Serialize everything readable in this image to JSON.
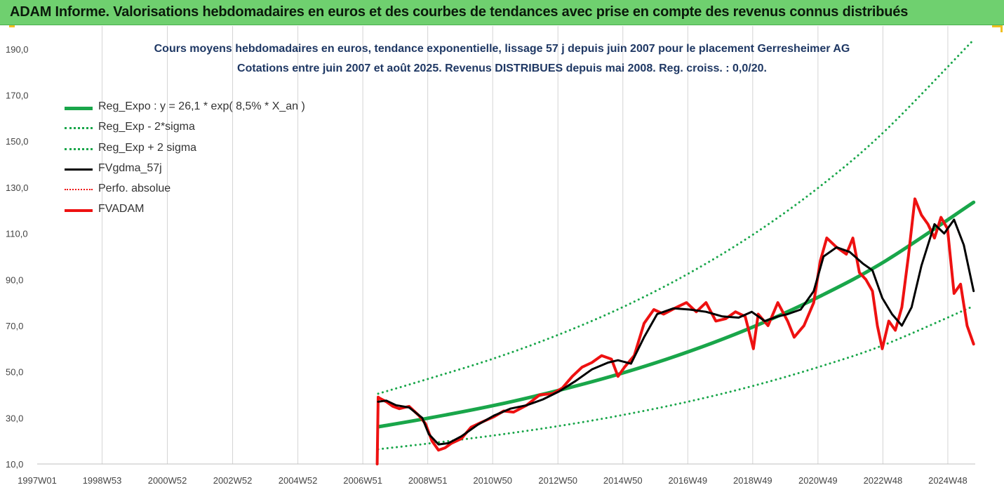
{
  "banner": {
    "title": "ADAM Informe. Valorisations hebdomadaires en euros et des courbes de tendances avec prise en compte des revenus connus distribués"
  },
  "colors": {
    "banner_bg": "#6fd06f",
    "title_text": "#1f3864",
    "reg_expo": "#19a64a",
    "sigma_bands": "#19a64a",
    "fvgdma": "#000000",
    "fvadam": "#ee1111",
    "perfo": "#ee1111",
    "gridline": "#d4d4d4"
  },
  "chart_data": {
    "type": "line",
    "title": "Cours moyens hebdomadaires en euros, tendance exponentielle, lissage 57 j depuis juin 2007 pour le placement Gerresheimer AG",
    "subtitle": "Cotations entre juin 2007 et août 2025. Revenus DISTRIBUES depuis mai 2008. Reg. croiss. : 0,0/20.",
    "xlabel": "",
    "ylabel": "",
    "ylim": [
      10,
      200
    ],
    "y_ticks": [
      "10,0",
      "30,0",
      "50,0",
      "70,0",
      "90,0",
      "110,0",
      "130,0",
      "150,0",
      "170,0",
      "190,0"
    ],
    "x_range": [
      1997.0,
      2025.75
    ],
    "x_ticks": [
      {
        "label": "1997W01",
        "x": 1997.0
      },
      {
        "label": "1998W53",
        "x": 1998.99
      },
      {
        "label": "2000W52",
        "x": 2000.99
      },
      {
        "label": "2002W52",
        "x": 2002.99
      },
      {
        "label": "2004W52",
        "x": 2004.99
      },
      {
        "label": "2006W51",
        "x": 2006.98
      },
      {
        "label": "2008W51",
        "x": 2008.97
      },
      {
        "label": "2010W50",
        "x": 2010.96
      },
      {
        "label": "2012W50",
        "x": 2012.96
      },
      {
        "label": "2014W50",
        "x": 2014.95
      },
      {
        "label": "2016W49",
        "x": 2016.94
      },
      {
        "label": "2018W49",
        "x": 2018.93
      },
      {
        "label": "2020W49",
        "x": 2020.93
      },
      {
        "label": "2022W48",
        "x": 2022.92
      },
      {
        "label": "2024W48",
        "x": 2024.91
      }
    ],
    "grid": "vertical",
    "legend_position": "top-left",
    "legend": [
      {
        "name": "Reg_Expo : y = 26,1 * exp( 8,5% *  X_an )",
        "color": "#19a64a",
        "style": "solid",
        "width": 5
      },
      {
        "name": "Reg_Exp - 2*sigma",
        "color": "#19a64a",
        "style": "dotted",
        "width": 3
      },
      {
        "name": "Reg_Exp + 2 sigma",
        "color": "#19a64a",
        "style": "dotted",
        "width": 3
      },
      {
        "name": "FVgdma_57j",
        "color": "#000000",
        "style": "solid",
        "width": 3
      },
      {
        "name": "Perfo. absolue",
        "color": "#ee1111",
        "style": "dotted",
        "width": 2
      },
      {
        "name": "FVADAM",
        "color": "#ee1111",
        "style": "solid",
        "width": 4
      }
    ],
    "series": [
      {
        "name": "Reg_Expo : y = 26,1 * exp( 8,5% *  X_an )",
        "x": [
          2007.45,
          2009.0,
          2011.0,
          2013.0,
          2015.0,
          2017.0,
          2019.0,
          2021.0,
          2023.0,
          2025.7
        ],
        "values": [
          26.1,
          29.9,
          35.4,
          42.0,
          49.7,
          58.9,
          69.8,
          82.8,
          98.1,
          123.5
        ]
      },
      {
        "name": "Reg_Exp - 2*sigma",
        "x": [
          2007.45,
          2009.0,
          2011.0,
          2013.0,
          2015.0,
          2017.0,
          2019.0,
          2021.0,
          2023.0,
          2025.7
        ],
        "values": [
          16.4,
          18.9,
          22.4,
          26.5,
          31.4,
          37.2,
          44.1,
          52.3,
          61.9,
          78.5
        ]
      },
      {
        "name": "Reg_Exp + 2 sigma",
        "x": [
          2007.45,
          2009.0,
          2011.0,
          2013.0,
          2015.0,
          2017.0,
          2019.0,
          2021.0,
          2023.0,
          2025.7
        ],
        "values": [
          40.5,
          47.0,
          55.8,
          66.2,
          78.4,
          92.9,
          110.1,
          130.5,
          154.7,
          194.0
        ]
      },
      {
        "name": "FVgdma_57j",
        "x": [
          2007.45,
          2007.7,
          2008.0,
          2008.4,
          2008.8,
          2009.0,
          2009.3,
          2009.6,
          2010.0,
          2010.5,
          2011.0,
          2011.5,
          2012.0,
          2012.5,
          2013.0,
          2013.5,
          2014.0,
          2014.5,
          2014.8,
          2015.2,
          2015.6,
          2016.0,
          2016.5,
          2017.0,
          2017.5,
          2018.0,
          2018.5,
          2018.9,
          2019.3,
          2019.7,
          2020.0,
          2020.4,
          2020.8,
          2021.1,
          2021.5,
          2021.9,
          2022.3,
          2022.6,
          2022.9,
          2023.2,
          2023.5,
          2023.8,
          2024.1,
          2024.5,
          2024.8,
          2025.1,
          2025.4,
          2025.7
        ],
        "values": [
          37.0,
          37.5,
          35.5,
          34.5,
          30.0,
          23.0,
          18.5,
          19.0,
          22.0,
          27.0,
          31.0,
          34.0,
          35.5,
          38.0,
          41.5,
          46.0,
          51.0,
          54.0,
          55.0,
          53.5,
          65.0,
          75.0,
          77.5,
          77.0,
          76.0,
          74.0,
          73.5,
          76.0,
          72.0,
          74.0,
          75.0,
          77.0,
          85.0,
          100.0,
          104.0,
          102.0,
          97.0,
          94.0,
          82.0,
          75.0,
          70.0,
          78.0,
          96.0,
          114.0,
          110.0,
          116.0,
          105.0,
          85.0
        ]
      },
      {
        "name": "FVADAM",
        "x": [
          2007.42,
          2007.45,
          2007.5,
          2007.7,
          2007.9,
          2008.1,
          2008.4,
          2008.7,
          2008.9,
          2009.1,
          2009.3,
          2009.5,
          2009.7,
          2010.0,
          2010.3,
          2010.6,
          2011.0,
          2011.3,
          2011.6,
          2012.0,
          2012.4,
          2012.8,
          2013.1,
          2013.4,
          2013.7,
          2014.0,
          2014.3,
          2014.6,
          2014.8,
          2015.0,
          2015.3,
          2015.6,
          2015.9,
          2016.2,
          2016.6,
          2016.9,
          2017.2,
          2017.5,
          2017.8,
          2018.1,
          2018.4,
          2018.7,
          2018.95,
          2019.1,
          2019.4,
          2019.7,
          2020.0,
          2020.2,
          2020.5,
          2020.8,
          2021.0,
          2021.2,
          2021.5,
          2021.8,
          2022.0,
          2022.2,
          2022.4,
          2022.6,
          2022.75,
          2022.9,
          2023.1,
          2023.3,
          2023.5,
          2023.7,
          2023.9,
          2024.1,
          2024.3,
          2024.5,
          2024.7,
          2024.9,
          2025.1,
          2025.3,
          2025.5,
          2025.7
        ],
        "values": [
          10.0,
          39.0,
          38.5,
          37.0,
          35.0,
          34.0,
          35.0,
          31.0,
          27.5,
          20.0,
          16.0,
          17.0,
          19.0,
          21.0,
          26.0,
          28.0,
          30.5,
          33.0,
          32.5,
          35.5,
          40.0,
          40.5,
          43.0,
          48.0,
          52.0,
          54.0,
          57.0,
          55.5,
          48.0,
          52.0,
          57.0,
          71.0,
          77.0,
          75.0,
          78.0,
          80.0,
          76.0,
          80.0,
          72.0,
          73.0,
          76.0,
          74.0,
          60.0,
          75.0,
          70.0,
          80.0,
          72.0,
          65.0,
          70.0,
          80.0,
          98.0,
          108.0,
          104.0,
          101.0,
          108.0,
          93.0,
          90.0,
          85.0,
          70.0,
          60.0,
          72.0,
          68.0,
          78.0,
          100.0,
          125.0,
          118.0,
          114.0,
          108.0,
          117.0,
          112.0,
          84.0,
          88.0,
          70.0,
          62.0
        ]
      }
    ]
  }
}
